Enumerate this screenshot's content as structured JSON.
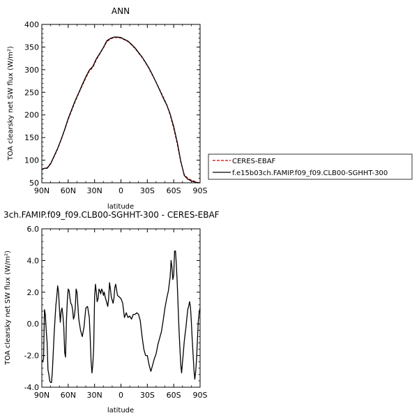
{
  "chart_data": [
    {
      "type": "line",
      "title": "ANN",
      "xlabel": "latitude",
      "ylabel": "TOA clearsky net SW flux (W/m²)",
      "xlim": [
        90,
        -90
      ],
      "ylim": [
        50,
        400
      ],
      "x_ticks": [
        90,
        60,
        30,
        0,
        -30,
        -60,
        -90
      ],
      "x_tick_labels": [
        "90N",
        "60N",
        "30N",
        "0",
        "30S",
        "60S",
        "90S"
      ],
      "y_ticks": [
        50,
        100,
        150,
        200,
        250,
        300,
        350,
        400
      ],
      "y_tick_labels": [
        "50",
        "100",
        "150",
        "200",
        "250",
        "300",
        "350",
        "400"
      ],
      "legend": {
        "placement": "right"
      },
      "series": [
        {
          "name": "CERES-EBAF",
          "color": "#cc0000",
          "dash": true,
          "x": [
            90,
            87,
            84,
            80,
            76,
            72,
            68,
            64,
            60,
            56,
            52,
            48,
            44,
            40,
            36,
            32,
            28,
            24,
            20,
            16,
            12,
            8,
            4,
            0,
            -4,
            -8,
            -12,
            -16,
            -20,
            -24,
            -28,
            -32,
            -36,
            -40,
            -44,
            -48,
            -52,
            -56,
            -60,
            -64,
            -68,
            -72,
            -76,
            -80,
            -84,
            -87,
            -90
          ],
          "y": [
            80,
            82,
            83,
            93,
            108,
            125,
            145,
            167,
            190,
            210,
            230,
            248,
            265,
            282,
            297,
            305,
            322,
            335,
            348,
            362,
            368,
            371,
            371,
            370,
            366,
            362,
            355,
            347,
            337,
            327,
            315,
            302,
            287,
            272,
            256,
            240,
            223,
            200,
            170,
            136,
            96,
            68,
            60,
            56,
            53,
            51,
            50
          ]
        },
        {
          "name": "f.e15b03ch.FAMIP.f09_f09.CLB00-SGHHT-300",
          "color": "#000000",
          "dash": false,
          "x": [
            90,
            87,
            84,
            80,
            76,
            72,
            68,
            64,
            60,
            56,
            52,
            48,
            44,
            40,
            36,
            32,
            28,
            24,
            20,
            16,
            12,
            8,
            4,
            0,
            -4,
            -8,
            -12,
            -16,
            -20,
            -24,
            -28,
            -32,
            -36,
            -40,
            -44,
            -48,
            -52,
            -56,
            -60,
            -64,
            -68,
            -72,
            -76,
            -80,
            -84,
            -87,
            -90
          ],
          "y": [
            79,
            82,
            82,
            92,
            109,
            126,
            146,
            168,
            192,
            212,
            232,
            249,
            267,
            284,
            299,
            307,
            324,
            336,
            349,
            364,
            369,
            372,
            372,
            371,
            367,
            363,
            356,
            348,
            338,
            328,
            316,
            303,
            288,
            272,
            255,
            238,
            222,
            202,
            174,
            140,
            98,
            66,
            58,
            54,
            52,
            50,
            50
          ]
        }
      ]
    },
    {
      "type": "line",
      "title": "3ch.FAMIP.f09_f09.CLB00-SGHHT-300 - CERES-EBAF",
      "xlabel": "latitude",
      "ylabel": "TOA clearsky net SW flux (W/m²)",
      "xlim": [
        90,
        -90
      ],
      "ylim": [
        -4.0,
        6.0
      ],
      "x_ticks": [
        90,
        60,
        30,
        0,
        -30,
        -60,
        -90
      ],
      "x_tick_labels": [
        "90N",
        "60N",
        "30N",
        "0",
        "30S",
        "60S",
        "90S"
      ],
      "y_ticks": [
        -4,
        -2,
        0,
        2,
        4,
        6
      ],
      "y_tick_labels": [
        "-4.0",
        "-2.0",
        "0.0",
        "2.0",
        "4.0",
        "6.0"
      ],
      "series": [
        {
          "color": "#000000",
          "x": [
            90,
            89,
            88,
            87,
            86,
            85,
            84,
            83,
            82,
            81,
            80,
            79,
            78,
            77,
            76,
            75,
            74,
            73,
            72,
            71,
            70,
            69,
            68,
            67,
            66,
            65,
            64,
            63,
            62,
            61,
            60,
            59,
            58,
            57,
            56,
            55,
            54,
            53,
            52,
            51,
            50,
            48,
            46,
            44,
            42,
            40,
            38,
            36,
            35,
            34,
            33,
            32,
            31,
            30,
            29,
            28,
            27,
            26,
            25,
            24,
            23,
            22,
            21,
            20,
            19,
            18,
            17,
            16,
            15,
            14,
            13,
            12,
            11,
            10,
            9,
            8,
            7,
            6,
            4,
            2,
            0,
            -2,
            -4,
            -6,
            -8,
            -10,
            -12,
            -14,
            -16,
            -18,
            -20,
            -22,
            -24,
            -26,
            -28,
            -30,
            -32,
            -34,
            -36,
            -38,
            -40,
            -42,
            -44,
            -46,
            -48,
            -50,
            -52,
            -54,
            -56,
            -57,
            -58,
            -59,
            -60,
            -61,
            -62,
            -63,
            -64,
            -65,
            -66,
            -67,
            -68,
            -69,
            -70,
            -71,
            -72,
            -73,
            -74,
            -75,
            -76,
            -77,
            -78,
            -79,
            -80,
            -81,
            -82,
            -83,
            -84,
            -85,
            -86,
            -87,
            -88,
            -89,
            -90
          ],
          "y": [
            -2.3,
            -2.4,
            -2.2,
            0.9,
            0.6,
            -0.4,
            -1.2,
            -2.9,
            -3.2,
            -3.6,
            -3.7,
            -3.7,
            -3.0,
            -1.8,
            -0.6,
            0.3,
            1.2,
            1.7,
            2.4,
            2.0,
            1.0,
            0.1,
            0.8,
            1.0,
            0.5,
            -0.2,
            -1.8,
            -2.1,
            0.2,
            1.5,
            2.2,
            2.1,
            1.6,
            1.3,
            1.2,
            0.9,
            0.3,
            0.5,
            1.0,
            2.2,
            2.0,
            0.3,
            -0.4,
            -0.8,
            -0.2,
            1.0,
            1.1,
            0.4,
            -0.9,
            -2.3,
            -3.1,
            -2.6,
            -1.5,
            1.7,
            2.5,
            2.0,
            1.4,
            1.6,
            2.2,
            2.1,
            1.9,
            2.2,
            2.1,
            1.8,
            2.0,
            1.7,
            1.5,
            1.3,
            1.1,
            1.6,
            2.6,
            2.2,
            1.7,
            1.5,
            1.3,
            1.6,
            2.3,
            2.5,
            1.8,
            1.7,
            1.6,
            1.3,
            0.4,
            0.7,
            0.4,
            0.5,
            0.3,
            0.6,
            0.6,
            0.7,
            0.6,
            0.2,
            -0.8,
            -1.6,
            -2.0,
            -2.0,
            -2.6,
            -3.0,
            -2.6,
            -2.2,
            -1.9,
            -1.3,
            -0.9,
            -0.5,
            0.2,
            1.0,
            1.6,
            2.1,
            3.0,
            4.0,
            3.6,
            2.8,
            3.1,
            4.6,
            4.6,
            3.8,
            2.6,
            1.1,
            -0.3,
            -1.5,
            -2.6,
            -3.1,
            -2.4,
            -1.8,
            -1.1,
            -0.6,
            -0.2,
            0.4,
            0.9,
            1.1,
            1.4,
            1.1,
            0.2,
            -0.9,
            -1.9,
            -2.9,
            -3.5,
            -3.0,
            -2.2,
            -1.0,
            0.2,
            0.7,
            1.0
          ]
        }
      ]
    }
  ]
}
